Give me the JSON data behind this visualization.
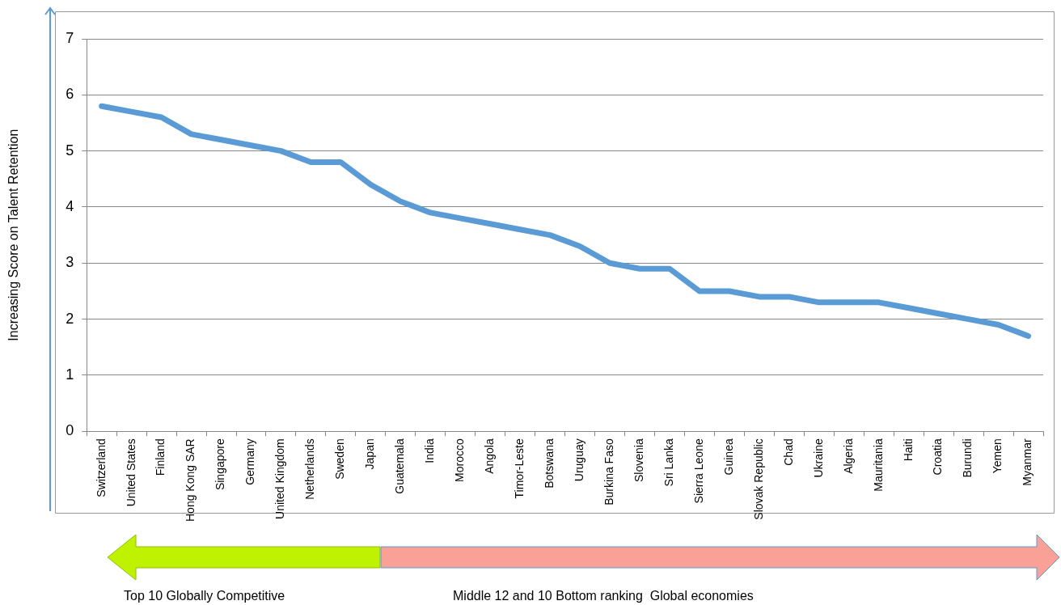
{
  "chart_data": {
    "type": "line",
    "ylabel": "Increasing Score on Talent Retention",
    "categories": [
      "Switzerland",
      "United States",
      "Finland",
      "Hong Kong SAR",
      "Singapore",
      "Germany",
      "United Kingdom",
      "Netherlands",
      "Sweden",
      "Japan",
      "Guatemala",
      "India",
      "Morocco",
      "Angola",
      "Timor-Leste",
      "Botswana",
      "Uruguay",
      "Burkina Faso",
      "Slovenia",
      "Sri Lanka",
      "Sierra Leone",
      "Guinea",
      "Slovak Republic",
      "Chad",
      "Ukraine",
      "Algeria",
      "Mauritania",
      "Haiti",
      "Croatia",
      "Burundi",
      "Yemen",
      "Myanmar"
    ],
    "values": [
      5.8,
      5.7,
      5.6,
      5.3,
      5.2,
      5.1,
      5.0,
      4.8,
      4.8,
      4.4,
      4.1,
      3.9,
      3.8,
      3.7,
      3.6,
      3.5,
      3.3,
      3.0,
      2.9,
      2.9,
      2.5,
      2.5,
      2.4,
      2.4,
      2.3,
      2.3,
      2.3,
      2.2,
      2.1,
      2.0,
      1.9,
      1.7
    ],
    "color": "#5b9bd5",
    "ylim": [
      0,
      7
    ],
    "yticks": [
      0,
      1,
      2,
      3,
      4,
      5,
      6,
      7
    ],
    "grid": "y",
    "marker": "none",
    "annotations": [
      "Top 10 Globally Competitive",
      "Middle 12 and 10 Bottom ranking  Global economies"
    ]
  }
}
